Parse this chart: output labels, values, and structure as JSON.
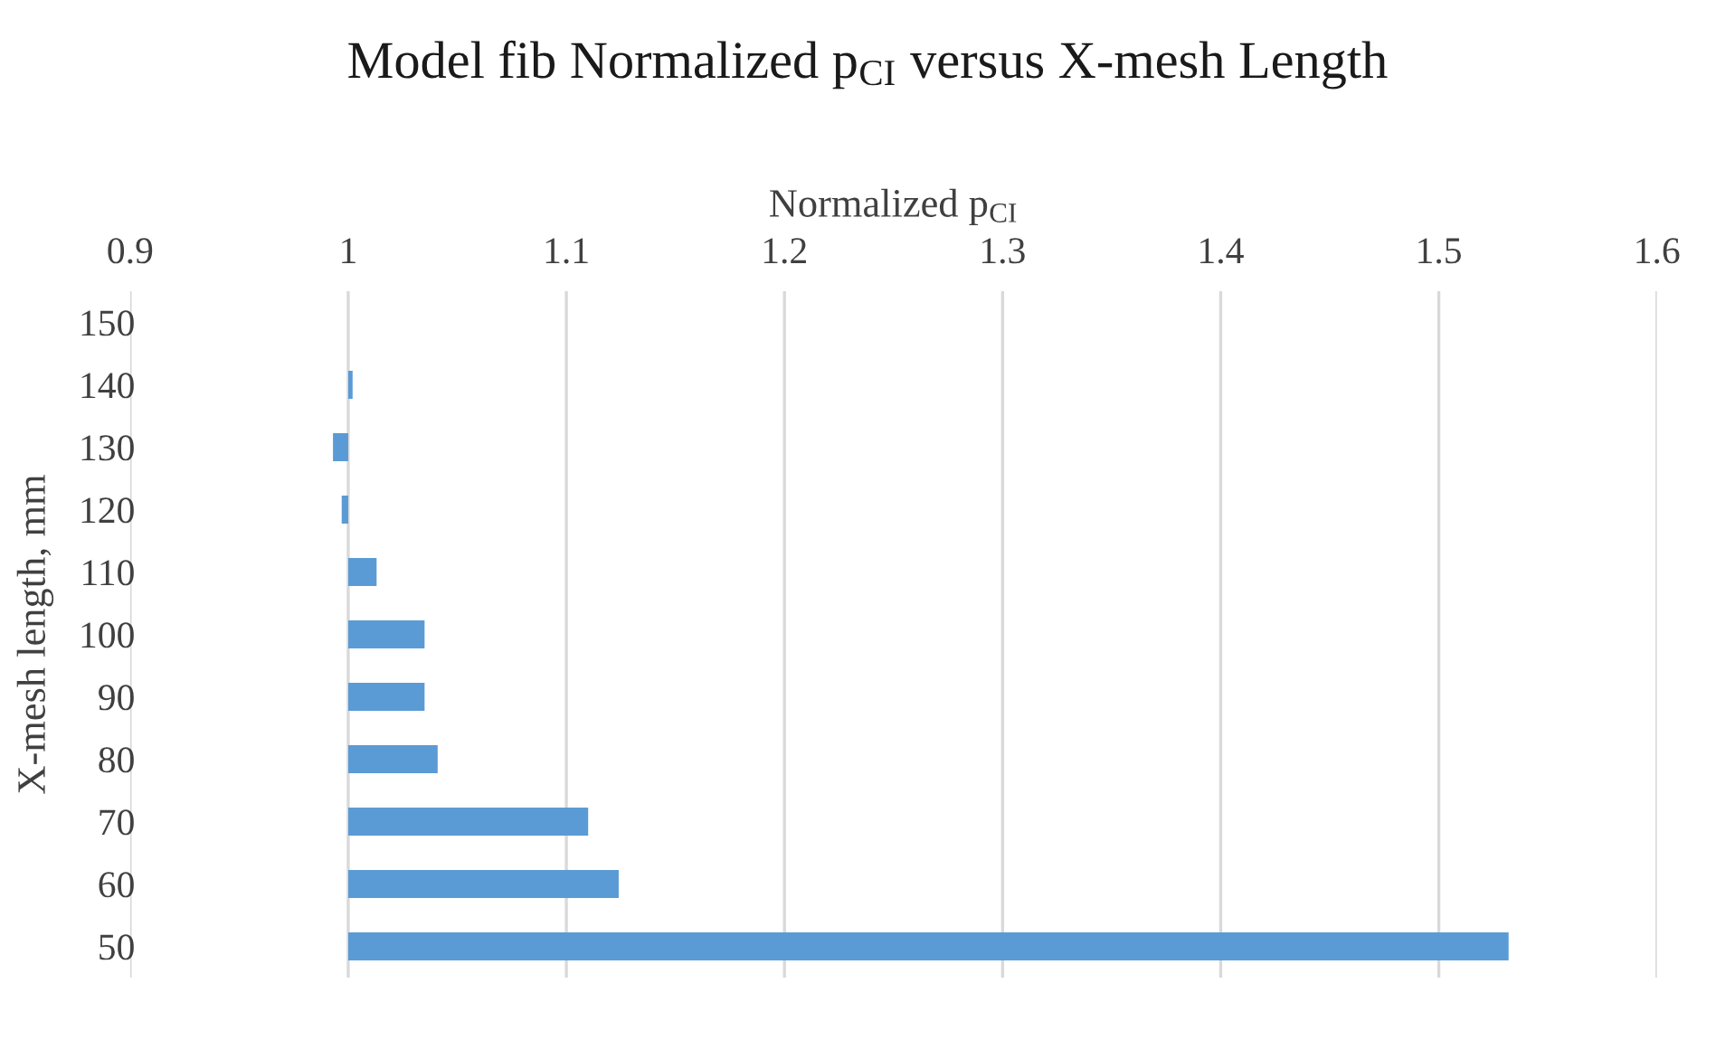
{
  "chart_data": {
    "type": "bar",
    "orientation": "horizontal",
    "title": "Model fib Normalized p$_{CI}$ versus X-mesh Length",
    "xlabel": "Normalized p$_{CI}$",
    "ylabel": "X-mesh length, mm",
    "categories": [
      "150",
      "140",
      "130",
      "120",
      "110",
      "100",
      "90",
      "80",
      "70",
      "60",
      "50"
    ],
    "base": [
      null,
      1,
      1,
      1,
      1,
      1,
      1,
      1,
      1,
      1,
      1
    ],
    "values": [
      null,
      0.002,
      -0.007,
      -0.003,
      0.013,
      0.035,
      0.035,
      0.041,
      0.11,
      0.124,
      0.532
    ],
    "color": "#5b9bd5",
    "xlim": [
      0.9,
      1.6
    ],
    "xticks": [
      0.9,
      1,
      1.1,
      1.2,
      1.3,
      1.4,
      1.5,
      1.6
    ],
    "grid": "x"
  }
}
